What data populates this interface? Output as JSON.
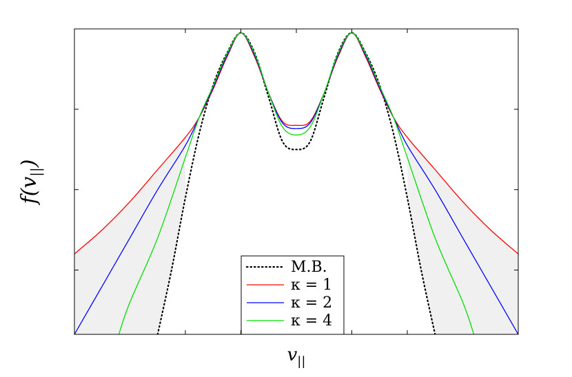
{
  "chart_data": {
    "type": "line",
    "title": "",
    "xlabel": "v||",
    "ylabel": "f(v||)",
    "log_scale_y": true,
    "ticks_labeled": false,
    "grid": false,
    "legend_placement": "bottom-center",
    "xlim": [
      -4,
      4
    ],
    "x_tick_positions": [
      -2,
      -1,
      0,
      1,
      2
    ],
    "ylim_decades": [
      -3.8,
      0.0
    ],
    "y_tick_decades": [
      -3,
      -2,
      -1
    ],
    "colors": {
      "mb": "#000000",
      "kappa1": "#ff0000",
      "kappa2": "#0000ff",
      "kappa4": "#00dd00",
      "shade": "#f0f0f0"
    },
    "series": [
      {
        "name": "M.B.",
        "color": "#000000",
        "style": "dotted",
        "x": [
          -2.5,
          -2.25,
          -2.0,
          -1.75,
          -1.5,
          -1.25,
          -1.0,
          -0.75,
          -0.5,
          -0.25,
          0.0,
          0.25,
          0.5,
          0.75,
          1.0,
          1.25,
          1.5,
          1.75,
          2.0,
          2.25,
          2.5
        ],
        "log10_y": [
          -3.8,
          -3.0,
          -2.1,
          -1.3,
          -0.7,
          -0.3,
          -0.05,
          -0.3,
          -0.85,
          -1.4,
          -1.5,
          -1.4,
          -0.85,
          -0.3,
          -0.05,
          -0.3,
          -0.7,
          -1.3,
          -2.1,
          -3.0,
          -3.8
        ]
      },
      {
        "name": "κ = 1",
        "color": "#ff0000",
        "style": "solid",
        "x": [
          -4.0,
          -3.5,
          -3.0,
          -2.5,
          -2.0,
          -1.75,
          -1.5,
          -1.25,
          -1.0,
          -0.75,
          -0.5,
          -0.25,
          0.0,
          0.25,
          0.5,
          0.75,
          1.0,
          1.25,
          1.5,
          1.75,
          2.0,
          2.5,
          3.0,
          3.5,
          4.0
        ],
        "log10_y": [
          -2.8,
          -2.5,
          -2.15,
          -1.75,
          -1.35,
          -1.1,
          -0.75,
          -0.35,
          -0.05,
          -0.35,
          -0.8,
          -1.15,
          -1.2,
          -1.15,
          -0.8,
          -0.35,
          -0.05,
          -0.35,
          -0.75,
          -1.1,
          -1.35,
          -1.75,
          -2.15,
          -2.5,
          -2.8
        ]
      },
      {
        "name": "κ = 2",
        "color": "#0000ff",
        "style": "solid",
        "x": [
          -4.0,
          -3.5,
          -3.0,
          -2.5,
          -2.0,
          -1.75,
          -1.5,
          -1.25,
          -1.0,
          -0.75,
          -0.5,
          -0.25,
          0.0,
          0.25,
          0.5,
          0.75,
          1.0,
          1.25,
          1.5,
          1.75,
          2.0,
          2.5,
          3.0,
          3.5,
          4.0
        ],
        "log10_y": [
          -3.8,
          -3.2,
          -2.6,
          -2.0,
          -1.45,
          -1.1,
          -0.73,
          -0.33,
          -0.05,
          -0.33,
          -0.8,
          -1.17,
          -1.24,
          -1.17,
          -0.8,
          -0.33,
          -0.05,
          -0.33,
          -0.73,
          -1.1,
          -1.45,
          -2.0,
          -2.6,
          -3.2,
          -3.8
        ]
      },
      {
        "name": "κ = 4",
        "color": "#00dd00",
        "style": "solid",
        "x": [
          -3.2,
          -3.0,
          -2.5,
          -2.0,
          -1.75,
          -1.5,
          -1.25,
          -1.0,
          -0.75,
          -0.5,
          -0.25,
          0.0,
          0.25,
          0.5,
          0.75,
          1.0,
          1.25,
          1.5,
          1.75,
          2.0,
          2.5,
          3.0,
          3.2
        ],
        "log10_y": [
          -3.8,
          -3.4,
          -2.6,
          -1.6,
          -1.1,
          -0.71,
          -0.31,
          -0.05,
          -0.31,
          -0.8,
          -1.22,
          -1.32,
          -1.22,
          -0.8,
          -0.31,
          -0.05,
          -0.31,
          -0.71,
          -1.1,
          -1.6,
          -2.6,
          -3.4,
          -3.8
        ]
      }
    ],
    "legend": {
      "entries": [
        "M.B.",
        "κ = 1",
        "κ = 2",
        "κ = 4"
      ]
    }
  }
}
